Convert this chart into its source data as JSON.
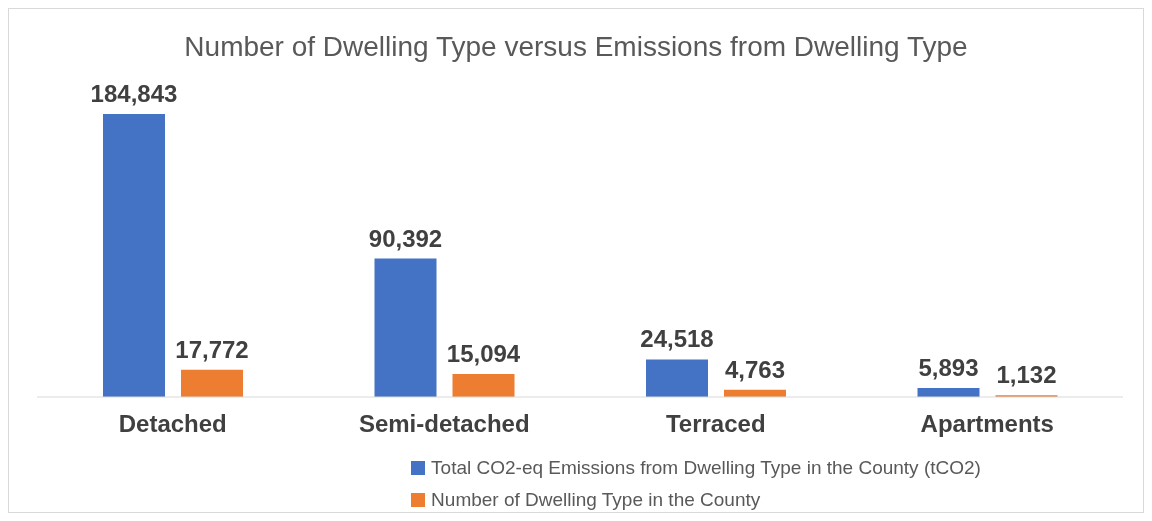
{
  "chart_data": {
    "type": "bar",
    "title": "Number of Dwelling Type versus Emissions from Dwelling Type",
    "categories": [
      "Detached",
      "Semi-detached",
      "Terraced",
      "Apartments"
    ],
    "series": [
      {
        "name": "Total CO2-eq Emissions from Dwelling Type in the County (tCO2)",
        "color": "#4472c4",
        "values": [
          184843,
          90392,
          24518,
          5893
        ],
        "value_labels": [
          "184,843",
          "90,392",
          "24,518",
          "5,893"
        ]
      },
      {
        "name": "Number of Dwelling Type in the County",
        "color": "#ed7d31",
        "values": [
          17772,
          15094,
          4763,
          1132
        ],
        "value_labels": [
          "17,772",
          "15,094",
          "4,763",
          "1,132"
        ]
      }
    ],
    "grid": false,
    "legend": "bottom"
  }
}
